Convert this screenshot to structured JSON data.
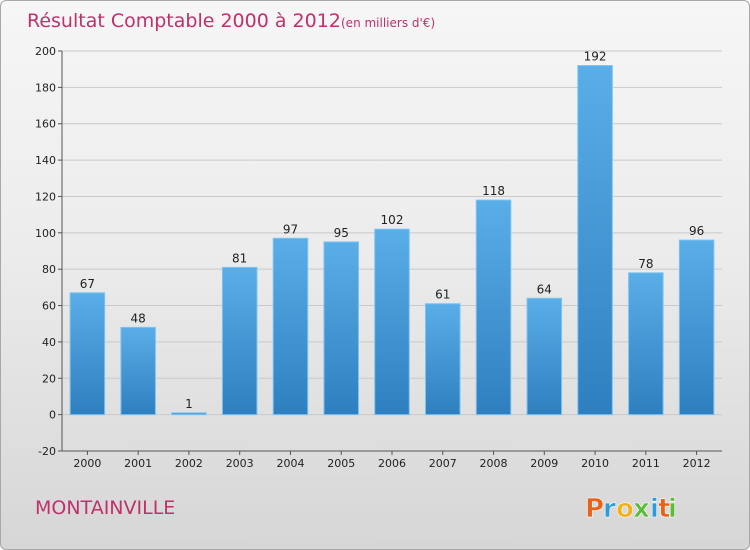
{
  "chart_data": {
    "type": "bar",
    "title": "Résultat Comptable 2000 à 2012",
    "subtitle": "(en milliers d'€)",
    "categories": [
      "2000",
      "2001",
      "2002",
      "2003",
      "2004",
      "2005",
      "2006",
      "2007",
      "2008",
      "2009",
      "2010",
      "2011",
      "2012"
    ],
    "values": [
      67,
      48,
      1,
      81,
      97,
      95,
      102,
      61,
      118,
      64,
      192,
      78,
      96
    ],
    "data_labels": [
      "67",
      "48",
      "1",
      "81",
      "97",
      "95",
      "102",
      "61",
      "118",
      "64",
      "192",
      "78",
      "96"
    ],
    "ylim": [
      -20,
      200
    ],
    "yticks": [
      -20,
      0,
      20,
      40,
      60,
      80,
      100,
      120,
      140,
      160,
      180,
      200
    ],
    "grid": true,
    "bar_color_top": "#5aaee8",
    "bar_color_bottom": "#2e7fbf"
  },
  "place_name": "MONTAINVILLE",
  "logo": {
    "letters": [
      "P",
      "r",
      "o",
      "x",
      "i",
      "t",
      "i"
    ],
    "colors": [
      "#e8621a",
      "#2f9ad8",
      "#f2b21c",
      "#5dbb3a",
      "#2f9ad8",
      "#e8621a",
      "#5dbb3a"
    ]
  }
}
